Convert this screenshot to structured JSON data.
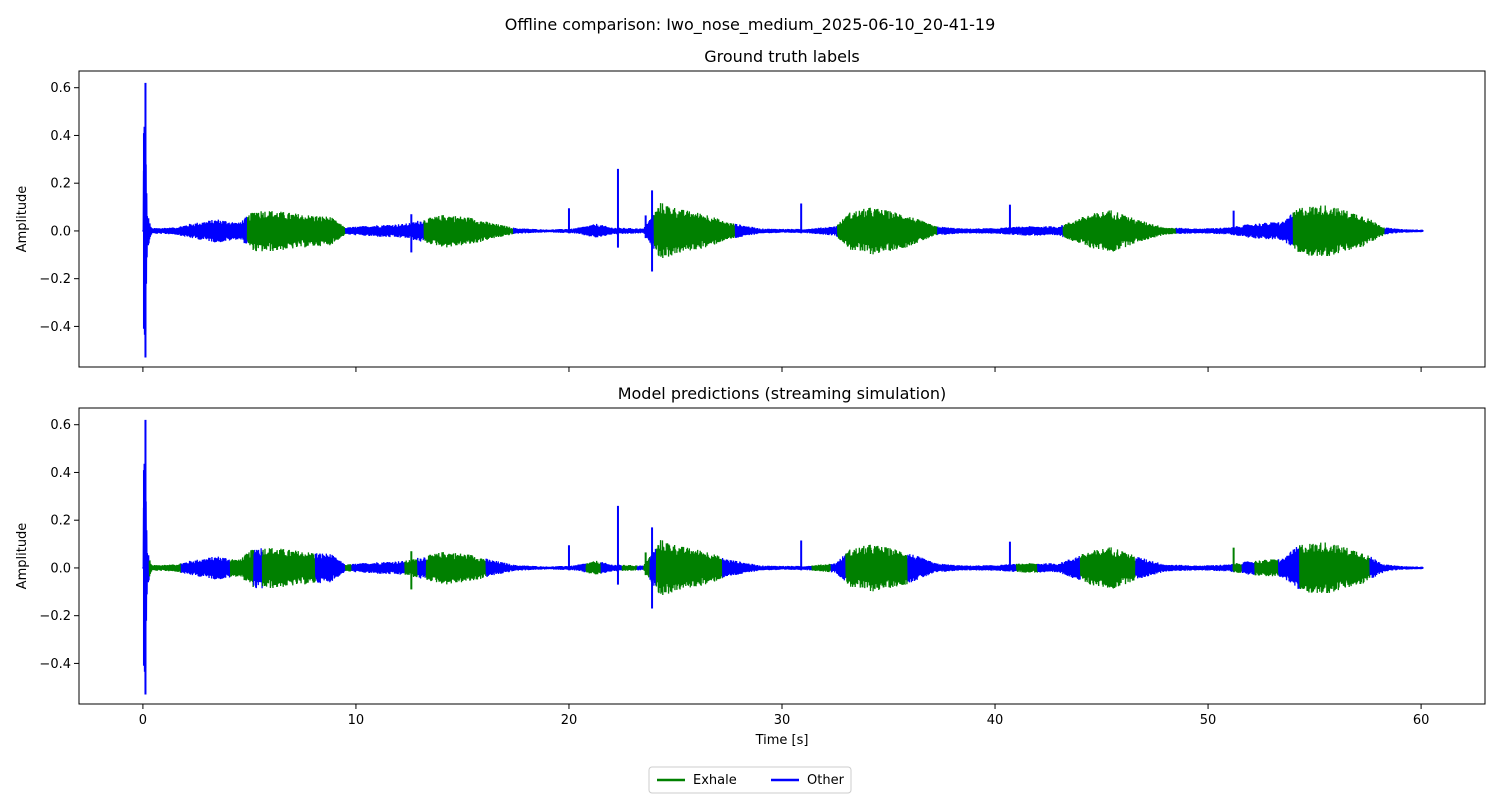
{
  "chart_data": {
    "type": "line",
    "title": "Offline comparison: Iwo_nose_medium_2025-06-10_20-41-19",
    "xlabel": "Time [s]",
    "ylabel": "Amplitude",
    "xlim": [
      -3,
      63
    ],
    "ylim": [
      -0.57,
      0.67
    ],
    "xticks": [
      0,
      10,
      20,
      30,
      40,
      50,
      60
    ],
    "yticks": [
      -0.4,
      -0.2,
      0.0,
      0.2,
      0.4,
      0.6
    ],
    "grid": false,
    "legend": {
      "placement": "bottom-center",
      "ncol": 2
    },
    "series": [
      {
        "name": "Exhale",
        "color": "#008000"
      },
      {
        "name": "Other",
        "color": "#0000ff"
      }
    ],
    "envelope_keypoints": {
      "t": [
        0,
        0.05,
        0.1,
        0.2,
        0.4,
        1.5,
        2.2,
        3.5,
        4.5,
        5.3,
        6.2,
        7.5,
        8.8,
        9.5,
        11,
        12.3,
        13.2,
        14.2,
        15.5,
        16.3,
        17.5,
        19,
        20.2,
        21.3,
        22,
        23.5,
        24.3,
        25.3,
        26.5,
        27.3,
        29,
        31,
        32.5,
        33.2,
        34.2,
        35.8,
        37.2,
        38.5,
        40,
        41.5,
        43,
        44.4,
        45.5,
        46.6,
        48,
        49.5,
        51,
        52,
        53.5,
        54.3,
        55.5,
        57.2,
        58.3,
        59,
        60
      ],
      "amp": [
        0.005,
        0.5,
        0.55,
        0.08,
        0.012,
        0.015,
        0.03,
        0.05,
        0.035,
        0.09,
        0.085,
        0.07,
        0.06,
        0.015,
        0.025,
        0.03,
        0.05,
        0.07,
        0.055,
        0.035,
        0.012,
        0.006,
        0.01,
        0.03,
        0.015,
        0.01,
        0.12,
        0.09,
        0.07,
        0.04,
        0.01,
        0.008,
        0.02,
        0.08,
        0.1,
        0.07,
        0.02,
        0.01,
        0.012,
        0.02,
        0.02,
        0.07,
        0.09,
        0.05,
        0.015,
        0.01,
        0.015,
        0.03,
        0.04,
        0.1,
        0.11,
        0.07,
        0.015,
        0.008,
        0.005
      ]
    },
    "spikes": [
      {
        "t": 0.05,
        "max": 0.41,
        "min": -0.41
      },
      {
        "t": 0.12,
        "max": 0.62,
        "min": -0.53
      },
      {
        "t": 12.6,
        "max": 0.07,
        "min": -0.09
      },
      {
        "t": 20.0,
        "max": 0.095,
        "min": -0.01
      },
      {
        "t": 22.3,
        "max": 0.26,
        "min": -0.07
      },
      {
        "t": 23.9,
        "max": 0.17,
        "min": -0.17
      },
      {
        "t": 23.6,
        "max": 0.065,
        "min": -0.03
      },
      {
        "t": 30.9,
        "max": 0.115,
        "min": -0.01
      },
      {
        "t": 40.7,
        "max": 0.11,
        "min": -0.01
      },
      {
        "t": 51.2,
        "max": 0.085,
        "min": -0.01
      }
    ],
    "panels": [
      {
        "title": "Ground truth labels",
        "segments": [
          {
            "start": 0,
            "end": 4.9,
            "label": "Other"
          },
          {
            "start": 4.9,
            "end": 9.5,
            "label": "Exhale"
          },
          {
            "start": 9.5,
            "end": 13.2,
            "label": "Other"
          },
          {
            "start": 13.2,
            "end": 17.4,
            "label": "Exhale"
          },
          {
            "start": 17.4,
            "end": 24.0,
            "label": "Other"
          },
          {
            "start": 24.0,
            "end": 27.8,
            "label": "Exhale"
          },
          {
            "start": 27.8,
            "end": 32.6,
            "label": "Other"
          },
          {
            "start": 32.6,
            "end": 37.3,
            "label": "Exhale"
          },
          {
            "start": 37.3,
            "end": 43.2,
            "label": "Other"
          },
          {
            "start": 43.2,
            "end": 48.5,
            "label": "Exhale"
          },
          {
            "start": 48.5,
            "end": 54.0,
            "label": "Other"
          },
          {
            "start": 54.0,
            "end": 58.3,
            "label": "Exhale"
          },
          {
            "start": 58.3,
            "end": 60.1,
            "label": "Other"
          }
        ]
      },
      {
        "title": "Model predictions (streaming simulation)",
        "segments": [
          {
            "start": 0,
            "end": 0.3,
            "label": "Other"
          },
          {
            "start": 0.3,
            "end": 1.8,
            "label": "Exhale"
          },
          {
            "start": 1.8,
            "end": 4.1,
            "label": "Other"
          },
          {
            "start": 4.1,
            "end": 5.2,
            "label": "Exhale"
          },
          {
            "start": 5.2,
            "end": 5.6,
            "label": "Other"
          },
          {
            "start": 5.6,
            "end": 8.1,
            "label": "Exhale"
          },
          {
            "start": 8.1,
            "end": 9.5,
            "label": "Other"
          },
          {
            "start": 9.5,
            "end": 9.8,
            "label": "Exhale"
          },
          {
            "start": 9.8,
            "end": 12.3,
            "label": "Other"
          },
          {
            "start": 12.3,
            "end": 12.9,
            "label": "Exhale"
          },
          {
            "start": 12.9,
            "end": 13.3,
            "label": "Other"
          },
          {
            "start": 13.3,
            "end": 16.1,
            "label": "Exhale"
          },
          {
            "start": 16.1,
            "end": 20.8,
            "label": "Other"
          },
          {
            "start": 20.8,
            "end": 21.5,
            "label": "Exhale"
          },
          {
            "start": 21.5,
            "end": 22.5,
            "label": "Other"
          },
          {
            "start": 22.5,
            "end": 23.2,
            "label": "Exhale"
          },
          {
            "start": 23.2,
            "end": 23.5,
            "label": "Other"
          },
          {
            "start": 23.5,
            "end": 23.8,
            "label": "Exhale"
          },
          {
            "start": 23.8,
            "end": 24.1,
            "label": "Other"
          },
          {
            "start": 24.1,
            "end": 27.2,
            "label": "Exhale"
          },
          {
            "start": 27.2,
            "end": 31.4,
            "label": "Other"
          },
          {
            "start": 31.4,
            "end": 32.3,
            "label": "Exhale"
          },
          {
            "start": 32.3,
            "end": 33.0,
            "label": "Other"
          },
          {
            "start": 33.0,
            "end": 35.9,
            "label": "Exhale"
          },
          {
            "start": 35.9,
            "end": 41.0,
            "label": "Other"
          },
          {
            "start": 41.0,
            "end": 42.0,
            "label": "Exhale"
          },
          {
            "start": 42.0,
            "end": 44.0,
            "label": "Other"
          },
          {
            "start": 44.0,
            "end": 46.6,
            "label": "Exhale"
          },
          {
            "start": 46.6,
            "end": 51.2,
            "label": "Other"
          },
          {
            "start": 51.2,
            "end": 51.6,
            "label": "Exhale"
          },
          {
            "start": 51.6,
            "end": 52.2,
            "label": "Other"
          },
          {
            "start": 52.2,
            "end": 53.3,
            "label": "Exhale"
          },
          {
            "start": 53.3,
            "end": 54.3,
            "label": "Other"
          },
          {
            "start": 54.3,
            "end": 57.6,
            "label": "Exhale"
          },
          {
            "start": 57.6,
            "end": 60.1,
            "label": "Other"
          }
        ]
      }
    ]
  }
}
